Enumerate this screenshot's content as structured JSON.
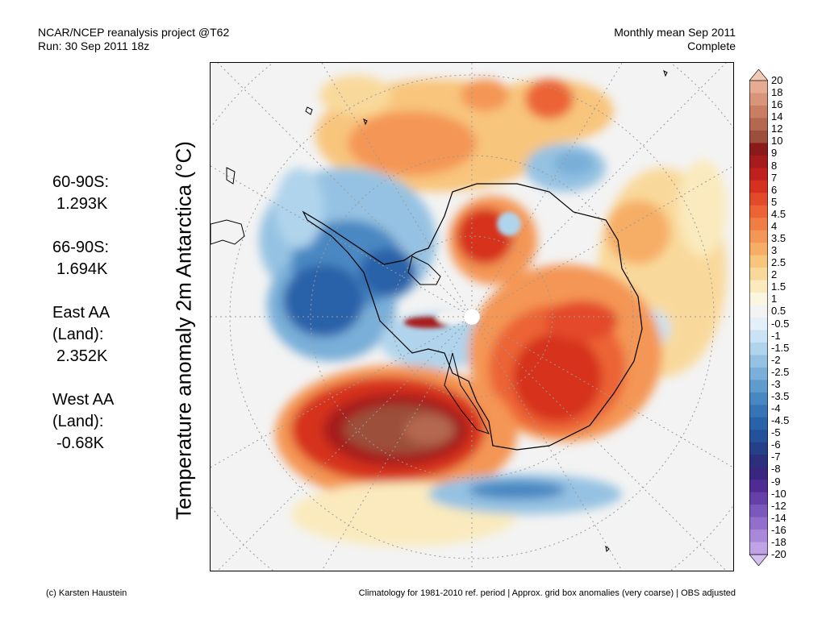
{
  "header": {
    "left_line1": "NCAR/NCEP reanalysis project @T62",
    "left_line2": "Run: 30 Sep 2011 18z",
    "right_line1": "Monthly mean Sep 2011",
    "right_line2": "Complete"
  },
  "axis_title": "Temperature anomaly 2m Antarctica (°C)",
  "stats": [
    {
      "label": "60-90S:",
      "value": "1.293K"
    },
    {
      "label": "66-90S:",
      "value": "1.694K"
    },
    {
      "label": "East AA",
      "label2": "(Land):",
      "value": "2.352K"
    },
    {
      "label": "West AA",
      "label2": "(Land):",
      "value": "-0.68K"
    }
  ],
  "colorbar": {
    "labels": [
      "20",
      "18",
      "16",
      "14",
      "12",
      "10",
      "9",
      "8",
      "7",
      "6",
      "5",
      "4.5",
      "4",
      "3.5",
      "3",
      "2.5",
      "2",
      "1.5",
      "1",
      "0.5",
      "-0.5",
      "-1",
      "-1.5",
      "-2",
      "-2.5",
      "-3",
      "-3.5",
      "-4",
      "-4.5",
      "-5",
      "-6",
      "-7",
      "-8",
      "-9",
      "-10",
      "-12",
      "-14",
      "-16",
      "-18",
      "-20"
    ],
    "colors": [
      "#f2c9b4",
      "#e6ac91",
      "#d9957a",
      "#c97d62",
      "#b56850",
      "#9c4f3a",
      "#8b1a1a",
      "#a61c1c",
      "#c0201e",
      "#d6311f",
      "#e34a2a",
      "#ec6436",
      "#f07d43",
      "#f49655",
      "#f6ad65",
      "#f8c57d",
      "#f9d99b",
      "#faeabd",
      "#fbf6e0",
      "#f3f3f3",
      "#e3f0fa",
      "#c9e3f4",
      "#b0d4ec",
      "#95c2e2",
      "#79afd8",
      "#5f9ccd",
      "#4888c2",
      "#3674b6",
      "#2962a9",
      "#23519a",
      "#244088",
      "#2b2f7c",
      "#3a2580",
      "#4e2c93",
      "#6540a8",
      "#7b58bc",
      "#926fcc",
      "#a988d9",
      "#bfa3e6",
      "#d5c0f0"
    ]
  },
  "footer": {
    "left": "(c) Karsten Haustein",
    "right": "Climatology for 1981-2010 ref. period | Approx. grid box anomalies (very coarse) | OBS adjusted"
  }
}
